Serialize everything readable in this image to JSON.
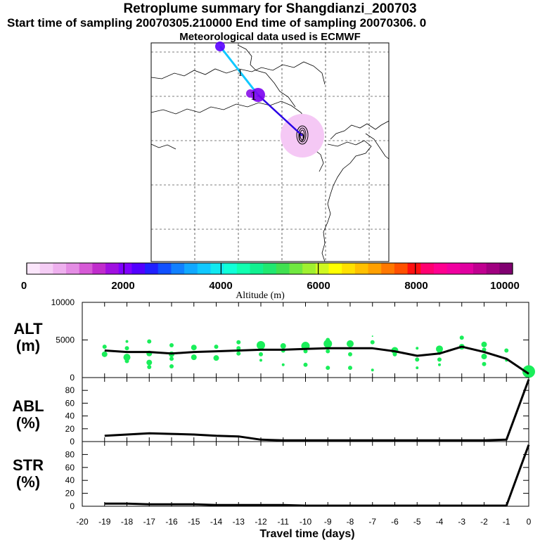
{
  "titles": {
    "main": "Retroplume summary for Shangdianzi_200703",
    "start_end": "Start time of sampling 20070305.210000     End time of sampling 20070306.     0",
    "met": "Meteorological data used is ECMWF"
  },
  "map": {
    "labels": [
      {
        "text": "1",
        "role": "day-marker"
      },
      {
        "text": "1",
        "role": "day-marker"
      },
      {
        "text": "0",
        "role": "release-marker"
      }
    ]
  },
  "colorbar": {
    "label": "Altitude (m)",
    "ticks": [
      "0",
      "2000",
      "4000",
      "6000",
      "8000",
      "10000"
    ],
    "colors": [
      "#fbe6fb",
      "#f5cdf5",
      "#eeb0ee",
      "#e48de4",
      "#d65ad6",
      "#c02ccc",
      "#a010e0",
      "#8000ff",
      "#5200ff",
      "#2020ff",
      "#1050ff",
      "#1080ff",
      "#10a8ff",
      "#10c8ff",
      "#10e8f0",
      "#10ffd8",
      "#10ffb0",
      "#10f090",
      "#20e870",
      "#40e050",
      "#70e840",
      "#a0f030",
      "#d0f820",
      "#ffff00",
      "#ffe000",
      "#ffc000",
      "#ffa000",
      "#ff7800",
      "#ff5000",
      "#ff1010",
      "#ff0070",
      "#ff0090",
      "#f000a0",
      "#e000a0",
      "#c00090",
      "#a00080",
      "#800070"
    ]
  },
  "chart_data": [
    {
      "type": "line",
      "panel": "ALT",
      "ylabel": "ALT\n(m)",
      "ylabel_line1": "ALT",
      "ylabel_line2": "(m)",
      "ylim": [
        0,
        10000
      ],
      "yticks": [
        "10000",
        "5000",
        "0"
      ],
      "ytick_values": [
        10000,
        5000,
        0
      ],
      "xlim": [
        -20,
        0
      ],
      "series": [
        {
          "name": "median altitude",
          "x": [
            -19,
            -18,
            -17,
            -16,
            -15,
            -14,
            -13,
            -12,
            -11,
            -10,
            -9,
            -8,
            -7,
            -6,
            -5,
            -4,
            -3,
            -2,
            -1,
            0
          ],
          "values": [
            3600,
            3400,
            3400,
            3200,
            3400,
            3500,
            3600,
            3700,
            3700,
            3800,
            3900,
            3900,
            3900,
            3500,
            2900,
            3200,
            4100,
            3400,
            2500,
            500
          ]
        }
      ],
      "scatter": [
        {
          "x": -19,
          "y": 4100,
          "s": 3
        },
        {
          "x": -19,
          "y": 3100,
          "s": 4
        },
        {
          "x": -18,
          "y": 4800,
          "s": 2
        },
        {
          "x": -18,
          "y": 3900,
          "s": 3
        },
        {
          "x": -18,
          "y": 2700,
          "s": 5
        },
        {
          "x": -18,
          "y": 2200,
          "s": 3
        },
        {
          "x": -17,
          "y": 4800,
          "s": 3
        },
        {
          "x": -17,
          "y": 3200,
          "s": 4
        },
        {
          "x": -17,
          "y": 2000,
          "s": 4
        },
        {
          "x": -17,
          "y": 1400,
          "s": 3
        },
        {
          "x": -16,
          "y": 4300,
          "s": 3
        },
        {
          "x": -16,
          "y": 3100,
          "s": 4
        },
        {
          "x": -16,
          "y": 2500,
          "s": 3
        },
        {
          "x": -16,
          "y": 1500,
          "s": 3
        },
        {
          "x": -15,
          "y": 4000,
          "s": 4
        },
        {
          "x": -15,
          "y": 2700,
          "s": 4
        },
        {
          "x": -14,
          "y": 4100,
          "s": 3
        },
        {
          "x": -14,
          "y": 2600,
          "s": 4
        },
        {
          "x": -13,
          "y": 4700,
          "s": 3
        },
        {
          "x": -13,
          "y": 3900,
          "s": 3
        },
        {
          "x": -13,
          "y": 3200,
          "s": 3
        },
        {
          "x": -12,
          "y": 4300,
          "s": 6
        },
        {
          "x": -12,
          "y": 3100,
          "s": 3
        },
        {
          "x": -12,
          "y": 2300,
          "s": 2
        },
        {
          "x": -11,
          "y": 4200,
          "s": 4
        },
        {
          "x": -11,
          "y": 3600,
          "s": 3
        },
        {
          "x": -11,
          "y": 1700,
          "s": 2
        },
        {
          "x": -10,
          "y": 4200,
          "s": 6
        },
        {
          "x": -10,
          "y": 3500,
          "s": 3
        },
        {
          "x": -10,
          "y": 1700,
          "s": 3
        },
        {
          "x": -9,
          "y": 5000,
          "s": 3
        },
        {
          "x": -9,
          "y": 4500,
          "s": 6
        },
        {
          "x": -9,
          "y": 3500,
          "s": 3
        },
        {
          "x": -9,
          "y": 1300,
          "s": 3
        },
        {
          "x": -8,
          "y": 4500,
          "s": 5
        },
        {
          "x": -8,
          "y": 3100,
          "s": 3
        },
        {
          "x": -8,
          "y": 1300,
          "s": 3
        },
        {
          "x": -7,
          "y": 5500,
          "s": 1
        },
        {
          "x": -7,
          "y": 4700,
          "s": 3
        },
        {
          "x": -7,
          "y": 1000,
          "s": 2
        },
        {
          "x": -6,
          "y": 3600,
          "s": 5
        },
        {
          "x": -6,
          "y": 3100,
          "s": 3
        },
        {
          "x": -5,
          "y": 3900,
          "s": 2
        },
        {
          "x": -5,
          "y": 2400,
          "s": 3
        },
        {
          "x": -5,
          "y": 1300,
          "s": 2
        },
        {
          "x": -4,
          "y": 3800,
          "s": 5
        },
        {
          "x": -4,
          "y": 3300,
          "s": 3
        },
        {
          "x": -4,
          "y": 2400,
          "s": 3
        },
        {
          "x": -4,
          "y": 1700,
          "s": 2
        },
        {
          "x": -3,
          "y": 5300,
          "s": 3
        },
        {
          "x": -3,
          "y": 4100,
          "s": 4
        },
        {
          "x": -2,
          "y": 4400,
          "s": 4
        },
        {
          "x": -2,
          "y": 3700,
          "s": 3
        },
        {
          "x": -2,
          "y": 2800,
          "s": 4
        },
        {
          "x": -2,
          "y": 1800,
          "s": 3
        },
        {
          "x": -1,
          "y": 3600,
          "s": 3
        },
        {
          "x": -1,
          "y": 2300,
          "s": 2
        },
        {
          "x": 0,
          "y": 800,
          "s": 9
        }
      ]
    },
    {
      "type": "line",
      "panel": "ABL",
      "ylabel_line1": "ABL",
      "ylabel_line2": "(%)",
      "ylim": [
        0,
        100
      ],
      "yticks": [
        "80",
        "60",
        "40",
        "20",
        "0"
      ],
      "ytick_values": [
        80,
        60,
        40,
        20,
        0
      ],
      "xlim": [
        -20,
        0
      ],
      "series": [
        {
          "name": "ABL fraction",
          "x": [
            -19,
            -18,
            -17,
            -16,
            -15,
            -14,
            -13,
            -12,
            -11,
            -10,
            -9,
            -8,
            -7,
            -6,
            -5,
            -4,
            -3,
            -2,
            -1,
            0
          ],
          "values": [
            9,
            11,
            13,
            12,
            11,
            9,
            8,
            3,
            2,
            2,
            2,
            2,
            2,
            2,
            2,
            2,
            2,
            2,
            3,
            97
          ]
        }
      ]
    },
    {
      "type": "line",
      "panel": "STR",
      "ylabel_line1": "STR",
      "ylabel_line2": "(%)",
      "ylim": [
        0,
        100
      ],
      "yticks": [
        "80",
        "60",
        "40",
        "20",
        "0"
      ],
      "ytick_values": [
        80,
        60,
        40,
        20,
        0
      ],
      "xlim": [
        -20,
        0
      ],
      "xlabel": "Travel time (days)",
      "xticks": [
        "-20",
        "-19",
        "-18",
        "-17",
        "-16",
        "-15",
        "-14",
        "-13",
        "-12",
        "-11",
        "-10",
        "-9",
        "-8",
        "-7",
        "-6",
        "-5",
        "-4",
        "-3",
        "-2",
        "-1",
        "0"
      ],
      "xtick_values": [
        -20,
        -19,
        -18,
        -17,
        -16,
        -15,
        -14,
        -13,
        -12,
        -11,
        -10,
        -9,
        -8,
        -7,
        -6,
        -5,
        -4,
        -3,
        -2,
        -1,
        0
      ],
      "series": [
        {
          "name": "stratosphere fraction",
          "x": [
            -19,
            -18,
            -17,
            -16,
            -15,
            -14,
            -13,
            -12,
            -11,
            -10,
            -9,
            -8,
            -7,
            -6,
            -5,
            -4,
            -3,
            -2,
            -1,
            0
          ],
          "values": [
            4,
            4,
            3,
            3,
            3,
            2,
            2,
            2,
            2,
            1,
            1,
            1,
            1,
            1,
            1,
            1,
            1,
            1,
            1,
            95
          ]
        }
      ]
    }
  ]
}
